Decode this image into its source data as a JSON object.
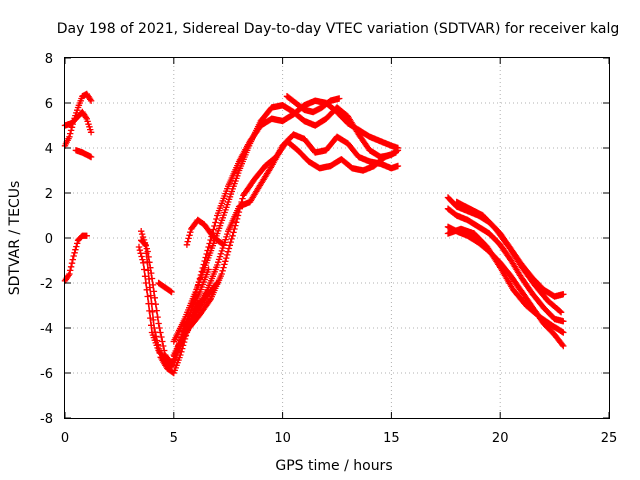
{
  "chart_data": {
    "type": "scatter",
    "title": "Day 198 of 2021, Sidereal Day-to-day VTEC variation (SDTVAR) for receiver kalg",
    "xlabel": "GPS time / hours",
    "ylabel": "SDTVAR / TECUs",
    "xlim": [
      0,
      25
    ],
    "ylim": [
      -8,
      8
    ],
    "xticks": [
      "0",
      "5",
      "10",
      "15",
      "20",
      "25"
    ],
    "yticks": [
      "-8",
      "-6",
      "-4",
      "-2",
      "0",
      "2",
      "4",
      "6",
      "8"
    ],
    "grid": true,
    "marker": "+",
    "color": "#ff0000",
    "series": [
      {
        "x": [
          0.0,
          0.3,
          0.6,
          0.8,
          1.0,
          1.2
        ],
        "y": [
          5.0,
          5.1,
          5.4,
          5.6,
          5.3,
          4.7
        ]
      },
      {
        "x": [
          0.0,
          0.2,
          0.4,
          0.6,
          0.8,
          1.0,
          1.2
        ],
        "y": [
          4.1,
          4.5,
          5.2,
          5.8,
          6.3,
          6.4,
          6.1
        ]
      },
      {
        "x": [
          0.5,
          0.8,
          1.0,
          1.2
        ],
        "y": [
          3.9,
          3.8,
          3.7,
          3.6
        ]
      },
      {
        "x": [
          0.0,
          0.2,
          0.4,
          0.6,
          0.8,
          1.0
        ],
        "y": [
          -1.9,
          -1.6,
          -0.8,
          -0.1,
          0.1,
          0.1
        ]
      },
      {
        "x": [
          3.5,
          3.8,
          4.0,
          4.3,
          4.6,
          4.9,
          5.2,
          5.5,
          5.8,
          6.2,
          6.6
        ],
        "y": [
          0.3,
          -0.6,
          -1.8,
          -3.8,
          -5.2,
          -5.6,
          -4.8,
          -3.9,
          -3.2,
          -2.4,
          -1.4
        ]
      },
      {
        "x": [
          3.4,
          3.6,
          3.8,
          4.0,
          4.3,
          4.6,
          4.9,
          5.1,
          5.4,
          5.8,
          6.2
        ],
        "y": [
          -0.4,
          -1.1,
          -2.6,
          -4.2,
          -5.0,
          -5.4,
          -5.7,
          -5.3,
          -4.6,
          -3.6,
          -2.8
        ]
      },
      {
        "x": [
          3.5,
          3.7,
          3.9,
          4.1,
          4.4,
          4.7,
          5.0,
          5.3,
          5.6,
          6.0,
          6.5,
          7.0
        ],
        "y": [
          -0.1,
          -0.3,
          -2.2,
          -4.0,
          -5.3,
          -5.8,
          -6.0,
          -5.2,
          -4.2,
          -3.3,
          -2.6,
          -2.0
        ]
      },
      {
        "x": [
          4.3,
          4.6,
          4.9
        ],
        "y": [
          -2.0,
          -2.2,
          -2.4
        ]
      },
      {
        "x": [
          5.0,
          5.4,
          5.8,
          6.2,
          6.6,
          7.0,
          7.5,
          8.0,
          8.5,
          9.0,
          9.5,
          10.0,
          10.5,
          11.0,
          11.5,
          12.0,
          12.5,
          13.0,
          13.5,
          14.0,
          14.5,
          15.0,
          15.3
        ],
        "y": [
          -5.2,
          -4.4,
          -3.2,
          -1.8,
          -0.4,
          1.0,
          2.3,
          3.4,
          4.3,
          5.0,
          5.3,
          5.2,
          5.5,
          5.9,
          6.1,
          6.0,
          5.6,
          5.1,
          4.8,
          4.5,
          4.3,
          4.1,
          4.0
        ]
      },
      {
        "x": [
          5.0,
          5.5,
          6.0,
          6.5,
          7.0,
          7.5,
          8.0,
          8.5,
          9.0,
          9.5,
          10.0,
          10.5,
          11.0,
          11.5,
          12.0,
          12.5,
          13.0,
          13.5,
          14.0,
          14.5,
          15.0,
          15.3
        ],
        "y": [
          -4.6,
          -3.6,
          -2.4,
          -1.1,
          0.2,
          1.6,
          3.0,
          4.2,
          5.2,
          5.8,
          5.9,
          5.6,
          5.2,
          5.0,
          5.3,
          5.8,
          5.4,
          4.6,
          3.9,
          3.6,
          3.7,
          3.9
        ]
      },
      {
        "x": [
          5.2,
          5.7,
          6.2,
          6.7,
          7.2,
          7.7,
          8.2,
          8.7,
          9.2,
          9.7,
          10.2,
          10.7,
          11.2,
          11.7,
          12.2,
          12.7,
          13.2,
          13.7,
          14.2,
          14.7,
          15.2
        ],
        "y": [
          -4.8,
          -4.0,
          -3.4,
          -2.7,
          -1.6,
          0.1,
          1.9,
          2.6,
          3.2,
          3.6,
          4.3,
          3.9,
          3.4,
          3.1,
          3.2,
          3.5,
          3.1,
          3.0,
          3.2,
          3.6,
          3.8
        ]
      },
      {
        "x": [
          5.5,
          6.0,
          6.5,
          7.0,
          7.5,
          8.0,
          8.5,
          9.0,
          9.5,
          10.0,
          10.5,
          11.0,
          11.5,
          12.0,
          12.5,
          13.0,
          13.5,
          14.0,
          14.5,
          15.0,
          15.3
        ],
        "y": [
          -4.1,
          -3.3,
          -2.4,
          -1.2,
          0.3,
          1.4,
          1.6,
          2.4,
          3.2,
          4.1,
          4.6,
          4.4,
          3.8,
          3.9,
          4.5,
          4.2,
          3.6,
          3.4,
          3.3,
          3.1,
          3.2
        ]
      },
      {
        "x": [
          5.6,
          5.8,
          6.1,
          6.4,
          6.7,
          7.0,
          7.3
        ],
        "y": [
          -0.3,
          0.4,
          0.8,
          0.6,
          0.2,
          -0.1,
          -0.3
        ]
      },
      {
        "x": [
          10.2,
          10.6,
          11.0,
          11.4,
          11.8,
          12.2,
          12.6
        ],
        "y": [
          6.3,
          6.0,
          5.7,
          5.6,
          5.8,
          6.1,
          6.2
        ]
      },
      {
        "x": [
          17.6,
          18.0,
          18.5,
          19.0,
          19.5,
          20.0,
          20.5,
          21.0,
          21.5,
          22.0,
          22.5,
          22.9
        ],
        "y": [
          1.8,
          1.4,
          1.2,
          1.0,
          0.7,
          0.2,
          -0.5,
          -1.2,
          -1.8,
          -2.3,
          -2.6,
          -2.5
        ]
      },
      {
        "x": [
          17.6,
          18.0,
          18.5,
          19.0,
          19.5,
          20.0,
          20.5,
          21.0,
          21.5,
          22.0,
          22.5,
          22.9
        ],
        "y": [
          1.3,
          1.0,
          0.8,
          0.5,
          0.2,
          -0.3,
          -1.0,
          -1.8,
          -2.5,
          -3.1,
          -3.6,
          -3.7
        ]
      },
      {
        "x": [
          17.6,
          18.0,
          18.5,
          19.0,
          19.5,
          20.0,
          20.5,
          21.0,
          21.5,
          22.0,
          22.5,
          22.9
        ],
        "y": [
          0.5,
          0.3,
          0.1,
          -0.2,
          -0.6,
          -1.1,
          -1.7,
          -2.4,
          -3.1,
          -3.8,
          -4.3,
          -4.8
        ]
      },
      {
        "x": [
          17.6,
          18.2,
          18.8,
          19.4,
          20.0,
          20.6,
          21.2,
          21.8,
          22.4,
          22.9
        ],
        "y": [
          0.2,
          0.4,
          0.2,
          -0.4,
          -1.3,
          -2.3,
          -3.0,
          -3.5,
          -3.9,
          -4.2
        ]
      },
      {
        "x": [
          18.0,
          18.6,
          19.2,
          19.8,
          20.4,
          21.0,
          21.6,
          22.2,
          22.8
        ],
        "y": [
          1.6,
          1.3,
          1.0,
          0.4,
          -0.4,
          -1.3,
          -2.1,
          -2.8,
          -3.3
        ]
      }
    ]
  }
}
